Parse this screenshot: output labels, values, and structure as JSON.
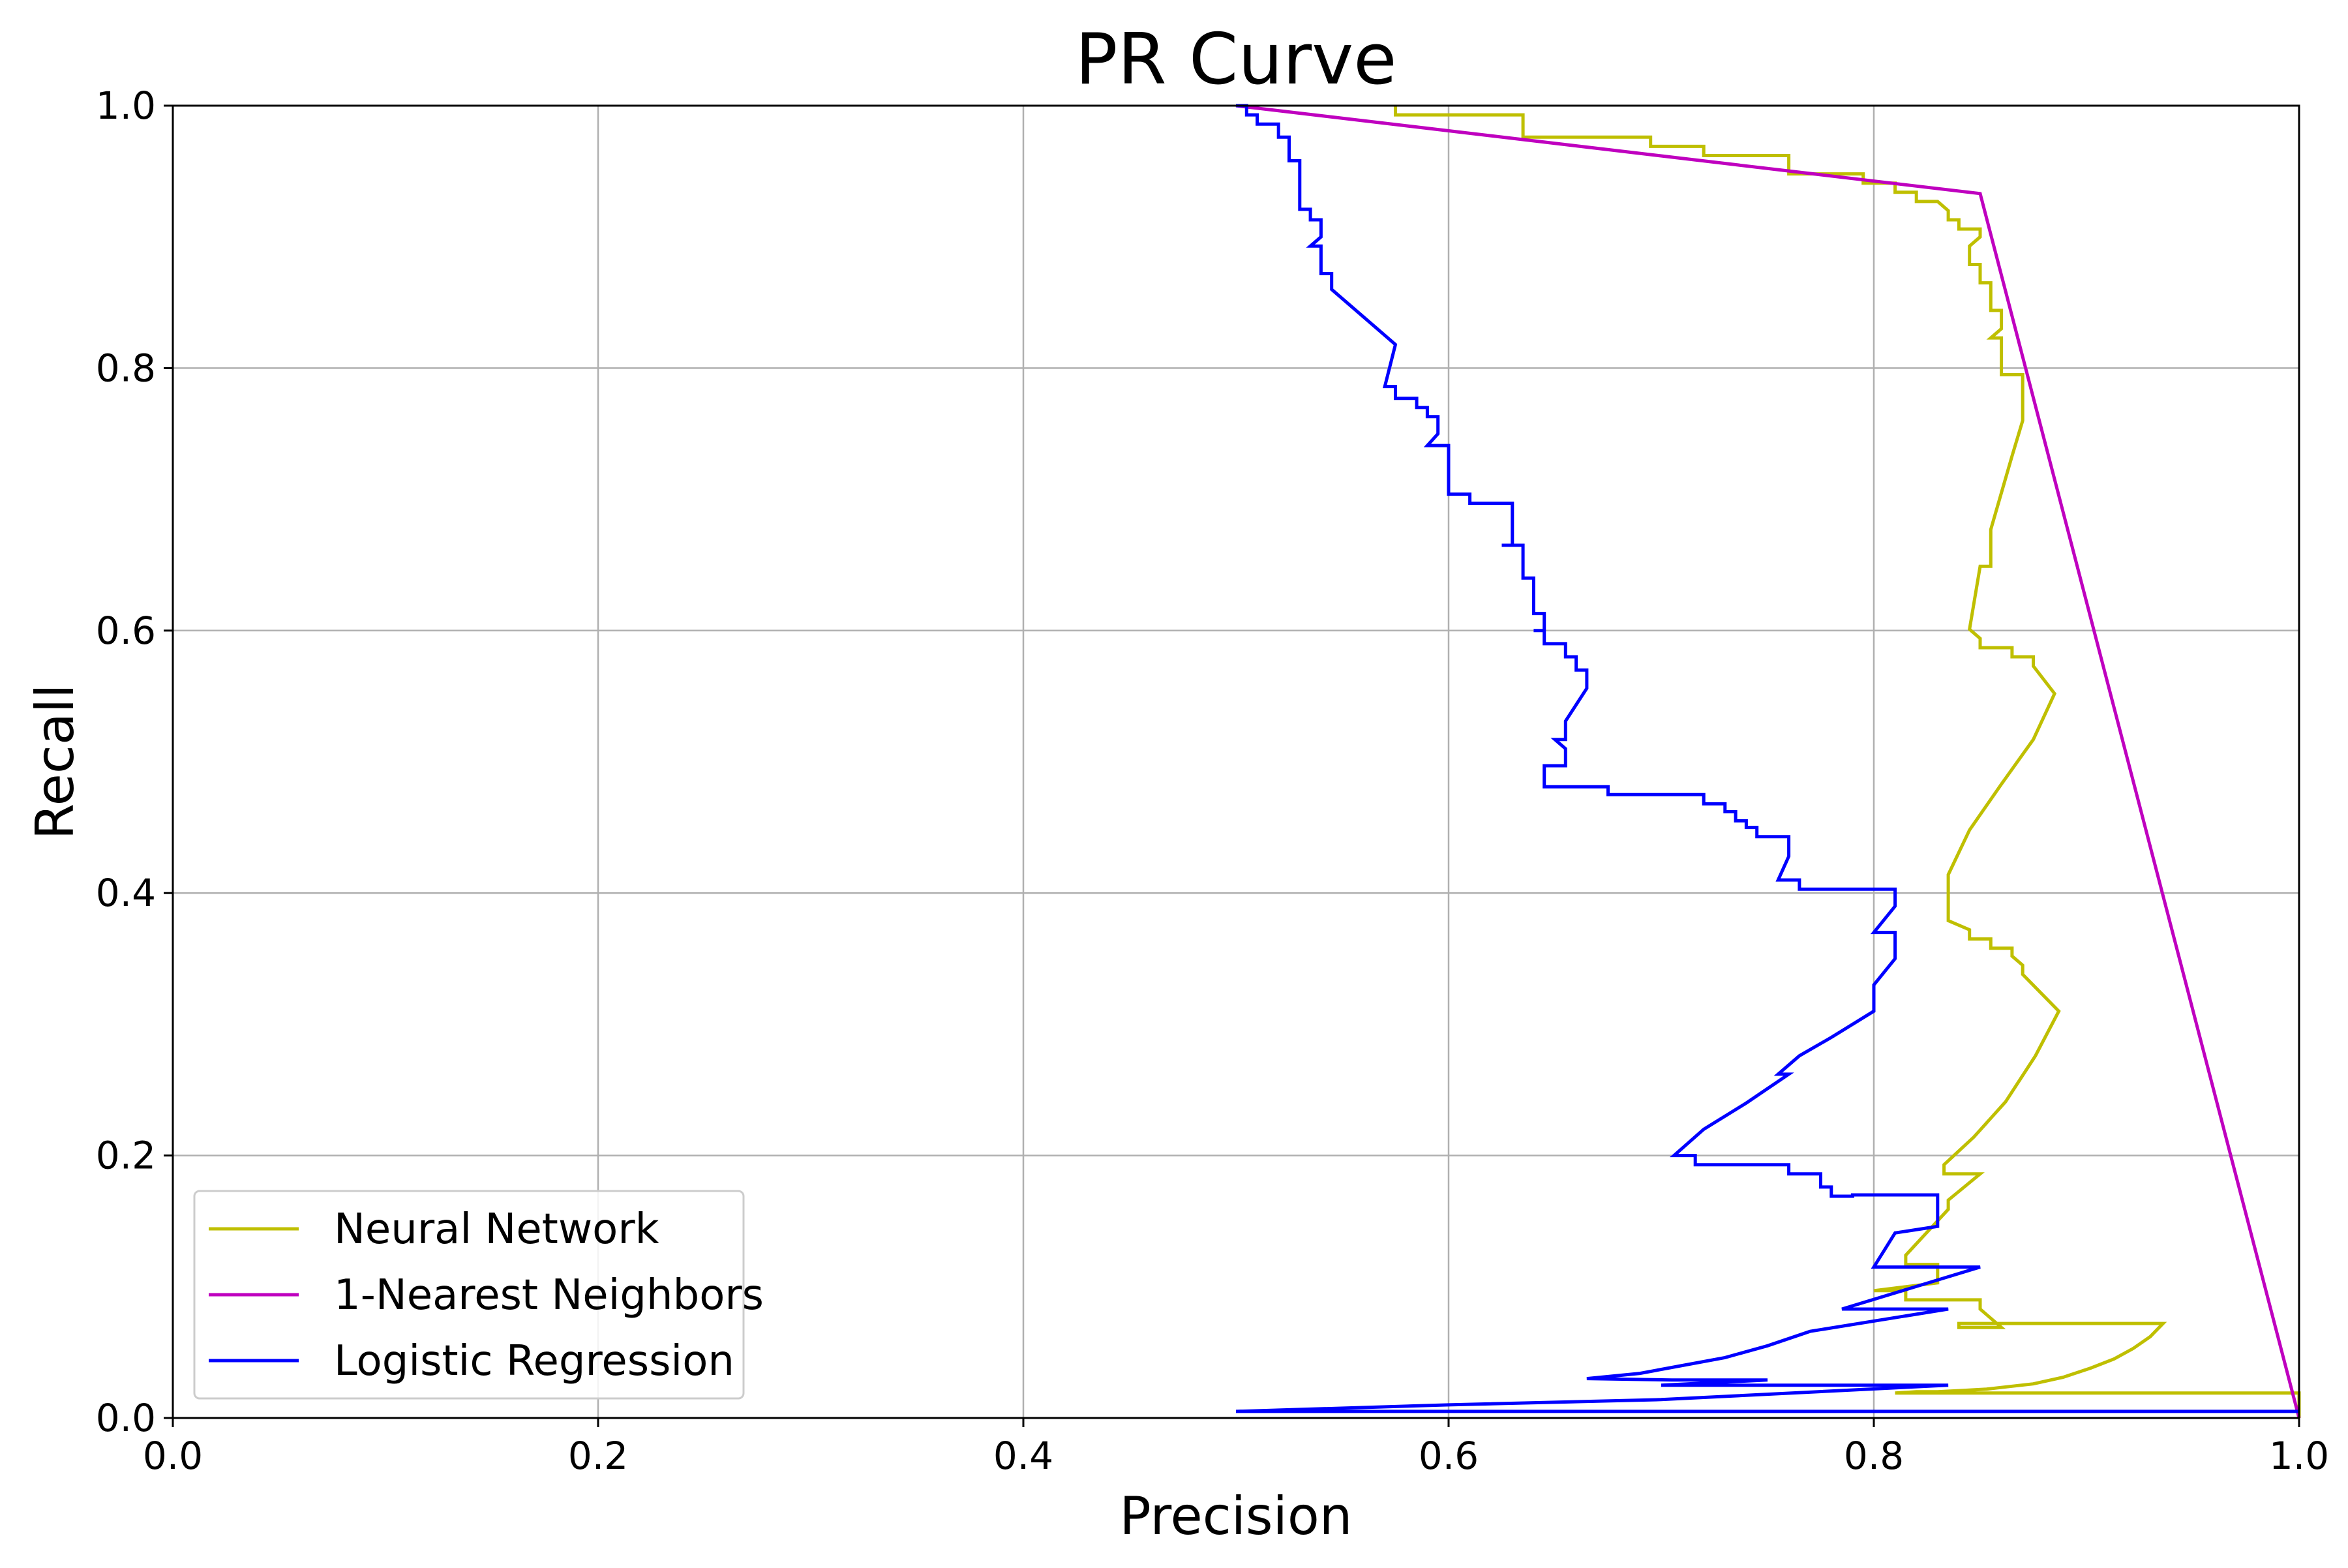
{
  "chart_data": {
    "type": "line",
    "title": "PR Curve",
    "xlabel": "Precision",
    "ylabel": "Recall",
    "xlim": [
      0.0,
      1.0
    ],
    "ylim": [
      0.0,
      1.0
    ],
    "xticks": [
      "0.0",
      "0.2",
      "0.4",
      "0.6",
      "0.8",
      "1.0"
    ],
    "yticks": [
      "0.0",
      "0.2",
      "0.4",
      "0.6",
      "0.8",
      "1.0"
    ],
    "grid": true,
    "legend_position": "lower-left",
    "series": [
      {
        "name": "Neural Network",
        "color": "#bfbf00",
        "x": [
          0.575,
          0.575,
          0.635,
          0.635,
          0.695,
          0.695,
          0.72,
          0.72,
          0.76,
          0.76,
          0.795,
          0.795,
          0.81,
          0.81,
          0.82,
          0.82,
          0.83,
          0.835,
          0.835,
          0.84,
          0.84,
          0.85,
          0.85,
          0.845,
          0.845,
          0.85,
          0.85,
          0.85,
          0.855,
          0.855,
          0.86,
          0.86,
          0.855,
          0.86,
          0.86,
          0.87,
          0.87,
          0.865,
          0.86,
          0.855,
          0.855,
          0.85,
          0.845,
          0.85,
          0.85,
          0.865,
          0.865,
          0.875,
          0.875,
          0.885,
          0.875,
          0.86,
          0.845,
          0.835,
          0.835,
          0.845,
          0.845,
          0.855,
          0.855,
          0.865,
          0.865,
          0.87,
          0.87,
          0.887,
          0.876,
          0.862,
          0.847,
          0.833,
          0.833,
          0.85,
          0.835,
          0.835,
          0.815,
          0.815,
          0.83,
          0.83,
          0.8,
          0.815,
          0.815,
          0.85,
          0.85,
          0.86,
          0.84,
          0.84,
          0.936,
          0.93,
          0.922,
          0.913,
          0.902,
          0.889,
          0.875,
          0.864,
          0.853,
          0.842,
          0.83,
          0.82,
          0.81,
          1.0,
          1.0
        ],
        "y": [
          1.0,
          0.993,
          0.993,
          0.976,
          0.976,
          0.969,
          0.969,
          0.962,
          0.962,
          0.948,
          0.948,
          0.941,
          0.941,
          0.934,
          0.934,
          0.927,
          0.927,
          0.92,
          0.913,
          0.913,
          0.906,
          0.906,
          0.9,
          0.893,
          0.879,
          0.879,
          0.872,
          0.865,
          0.865,
          0.844,
          0.844,
          0.83,
          0.823,
          0.823,
          0.795,
          0.795,
          0.76,
          0.733,
          0.705,
          0.677,
          0.649,
          0.649,
          0.601,
          0.594,
          0.587,
          0.587,
          0.58,
          0.58,
          0.573,
          0.552,
          0.517,
          0.483,
          0.448,
          0.414,
          0.379,
          0.372,
          0.365,
          0.365,
          0.358,
          0.358,
          0.352,
          0.345,
          0.338,
          0.31,
          0.276,
          0.241,
          0.214,
          0.193,
          0.186,
          0.186,
          0.166,
          0.159,
          0.124,
          0.117,
          0.117,
          0.103,
          0.097,
          0.097,
          0.09,
          0.09,
          0.083,
          0.069,
          0.069,
          0.072,
          0.072,
          0.062,
          0.053,
          0.045,
          0.038,
          0.031,
          0.026,
          0.024,
          0.022,
          0.021,
          0.02,
          0.02,
          0.019,
          0.019,
          0.0
        ]
      },
      {
        "name": "1-Nearest Neighbors",
        "color": "#bf00bf",
        "x": [
          0.5,
          0.85,
          1.0
        ],
        "y": [
          1.0,
          0.933,
          0.0
        ]
      },
      {
        "name": "Logistic Regression",
        "color": "#0000ff",
        "x": [
          0.5,
          0.505,
          0.505,
          0.51,
          0.51,
          0.52,
          0.52,
          0.525,
          0.525,
          0.53,
          0.53,
          0.53,
          0.535,
          0.535,
          0.54,
          0.54,
          0.535,
          0.54,
          0.54,
          0.545,
          0.545,
          0.575,
          0.575,
          0.57,
          0.575,
          0.575,
          0.585,
          0.585,
          0.59,
          0.59,
          0.595,
          0.595,
          0.59,
          0.6,
          0.6,
          0.6,
          0.61,
          0.61,
          0.63,
          0.63,
          0.625,
          0.635,
          0.635,
          0.635,
          0.635,
          0.64,
          0.64,
          0.64,
          0.645,
          0.645,
          0.64,
          0.645,
          0.645,
          0.655,
          0.655,
          0.66,
          0.66,
          0.665,
          0.665,
          0.655,
          0.655,
          0.65,
          0.655,
          0.655,
          0.645,
          0.645,
          0.675,
          0.675,
          0.72,
          0.72,
          0.73,
          0.73,
          0.735,
          0.735,
          0.74,
          0.74,
          0.745,
          0.745,
          0.76,
          0.76,
          0.755,
          0.765,
          0.765,
          0.81,
          0.81,
          0.8,
          0.81,
          0.81,
          0.8,
          0.8,
          0.78,
          0.765,
          0.755,
          0.76,
          0.74,
          0.72,
          0.706,
          0.716,
          0.716,
          0.76,
          0.76,
          0.775,
          0.775,
          0.78,
          0.78,
          0.79,
          0.79,
          0.83,
          0.83,
          0.81,
          0.8,
          0.8,
          0.85,
          0.785,
          0.785,
          0.835,
          0.77,
          0.75,
          0.73,
          0.71,
          0.69,
          0.665,
          0.705,
          0.75,
          0.7,
          0.835,
          0.7,
          0.6,
          0.5,
          0.7,
          1.0
        ],
        "y": [
          1.0,
          1.0,
          0.993,
          0.993,
          0.986,
          0.986,
          0.976,
          0.976,
          0.958,
          0.958,
          0.938,
          0.921,
          0.921,
          0.913,
          0.913,
          0.9,
          0.893,
          0.893,
          0.872,
          0.872,
          0.86,
          0.818,
          0.818,
          0.786,
          0.786,
          0.777,
          0.777,
          0.77,
          0.77,
          0.763,
          0.763,
          0.75,
          0.741,
          0.741,
          0.72,
          0.704,
          0.704,
          0.697,
          0.697,
          0.665,
          0.665,
          0.665,
          0.655,
          0.648,
          0.64,
          0.64,
          0.621,
          0.613,
          0.613,
          0.6,
          0.6,
          0.6,
          0.59,
          0.59,
          0.58,
          0.58,
          0.57,
          0.57,
          0.556,
          0.531,
          0.517,
          0.517,
          0.51,
          0.497,
          0.497,
          0.481,
          0.481,
          0.475,
          0.475,
          0.468,
          0.468,
          0.462,
          0.462,
          0.455,
          0.455,
          0.45,
          0.45,
          0.443,
          0.443,
          0.428,
          0.41,
          0.41,
          0.403,
          0.403,
          0.39,
          0.37,
          0.37,
          0.35,
          0.33,
          0.31,
          0.29,
          0.276,
          0.262,
          0.262,
          0.24,
          0.22,
          0.2,
          0.2,
          0.193,
          0.193,
          0.186,
          0.186,
          0.176,
          0.176,
          0.169,
          0.169,
          0.17,
          0.17,
          0.146,
          0.141,
          0.115,
          0.115,
          0.115,
          0.083,
          0.083,
          0.083,
          0.066,
          0.055,
          0.046,
          0.04,
          0.034,
          0.03,
          0.029,
          0.029,
          0.025,
          0.025,
          0.014,
          0.01,
          0.005,
          0.005,
          0.005
        ]
      }
    ]
  }
}
